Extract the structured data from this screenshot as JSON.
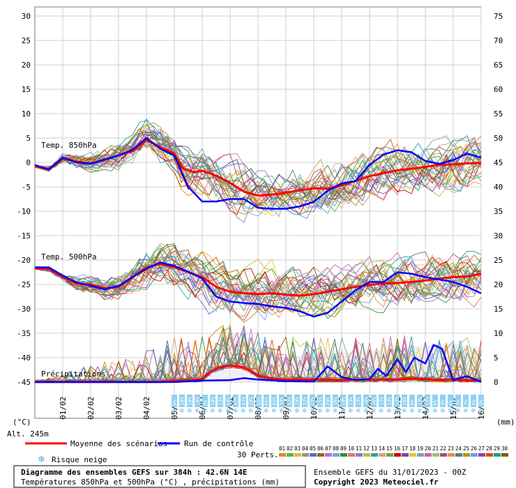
{
  "chart_data": {
    "type": "line",
    "axes": {
      "left_label": "(°C)",
      "right_label": "(mm)",
      "left_ticks": [
        30,
        25,
        20,
        15,
        10,
        5,
        0,
        -5,
        -10,
        -15,
        -20,
        -25,
        -30,
        -35,
        -40,
        -45
      ],
      "right_ticks": [
        75,
        70,
        65,
        60,
        55,
        50,
        45,
        40,
        35,
        30,
        25,
        20,
        15,
        10,
        5,
        0
      ],
      "left_range": [
        -45,
        30
      ],
      "right_range": [
        0,
        75
      ],
      "x_ticks": [
        "01/02",
        "02/02",
        "03/02",
        "04/02",
        "05/02",
        "06/02",
        "07/02",
        "08/02",
        "09/02",
        "10/02",
        "11/02",
        "12/02",
        "13/02",
        "14/02",
        "15/02",
        "16/02"
      ],
      "x_range_days": [
        0,
        16
      ],
      "grid": true
    },
    "panel_labels": {
      "t850": "Temp. 850hPa",
      "t500": "Temp. 500hPa",
      "precip": "Précipitations"
    },
    "altitude": "Alt. 245m",
    "series": [
      {
        "name": "Moyenne des scénarios",
        "color": "#ff0000",
        "t850": [
          [
            0,
            -0.8
          ],
          [
            0.5,
            -1.3
          ],
          [
            1,
            0.8
          ],
          [
            1.5,
            0.2
          ],
          [
            2,
            -0.2
          ],
          [
            2.5,
            0.5
          ],
          [
            3,
            1.5
          ],
          [
            3.5,
            2.3
          ],
          [
            4,
            4.6
          ],
          [
            4.5,
            3.1
          ],
          [
            5,
            1.8
          ],
          [
            5.3,
            -1.2
          ],
          [
            5.7,
            -2
          ],
          [
            6,
            -1.7
          ],
          [
            6.5,
            -2.7
          ],
          [
            7,
            -4.2
          ],
          [
            7.5,
            -6
          ],
          [
            8,
            -6.8
          ],
          [
            8.5,
            -6.6
          ],
          [
            9,
            -6.2
          ],
          [
            9.5,
            -5.7
          ],
          [
            10,
            -5.3
          ],
          [
            10.5,
            -5.4
          ],
          [
            11,
            -4.7
          ],
          [
            11.5,
            -3.8
          ],
          [
            12,
            -2.8
          ],
          [
            12.5,
            -2.2
          ],
          [
            13,
            -1.6
          ],
          [
            13.5,
            -1.3
          ],
          [
            14,
            -0.9
          ],
          [
            14.5,
            -0.5
          ],
          [
            15,
            -0.4
          ],
          [
            15.5,
            -0.2
          ],
          [
            16,
            -0.1
          ]
        ],
        "t500": [
          [
            0,
            -21.7
          ],
          [
            0.5,
            -21.8
          ],
          [
            1,
            -23.5
          ],
          [
            1.5,
            -24.8
          ],
          [
            2,
            -25
          ],
          [
            2.5,
            -25.8
          ],
          [
            3,
            -25.5
          ],
          [
            3.5,
            -23.5
          ],
          [
            4,
            -21.5
          ],
          [
            4.5,
            -20.8
          ],
          [
            5,
            -21.5
          ],
          [
            5.5,
            -22.5
          ],
          [
            6,
            -23.5
          ],
          [
            6.5,
            -25.5
          ],
          [
            7,
            -26.5
          ],
          [
            7.5,
            -26.8
          ],
          [
            8,
            -27
          ],
          [
            8.5,
            -26.8
          ],
          [
            9,
            -27.1
          ],
          [
            9.5,
            -27.3
          ],
          [
            10,
            -27
          ],
          [
            10.5,
            -26.5
          ],
          [
            11,
            -26
          ],
          [
            11.5,
            -25.5
          ],
          [
            12,
            -25.1
          ],
          [
            12.5,
            -24.8
          ],
          [
            13,
            -24.7
          ],
          [
            13.5,
            -24.5
          ],
          [
            14,
            -24.2
          ],
          [
            14.5,
            -23.8
          ],
          [
            15,
            -23.5
          ],
          [
            15.5,
            -23.4
          ],
          [
            16,
            -22.8
          ]
        ],
        "precip": [
          [
            0,
            0
          ],
          [
            4.5,
            0
          ],
          [
            5,
            0.3
          ],
          [
            5.5,
            0.3
          ],
          [
            6,
            0.6
          ],
          [
            6.3,
            2.1
          ],
          [
            6.6,
            3
          ],
          [
            7,
            3.4
          ],
          [
            7.5,
            3
          ],
          [
            8,
            1.3
          ],
          [
            8.5,
            0.7
          ],
          [
            9,
            0.5
          ],
          [
            10,
            0.5
          ],
          [
            11,
            0.4
          ],
          [
            12,
            0.5
          ],
          [
            13,
            0.5
          ],
          [
            13.5,
            0.7
          ],
          [
            14,
            0.6
          ],
          [
            14.5,
            0.4
          ],
          [
            15,
            0.5
          ],
          [
            15.5,
            0.3
          ],
          [
            16,
            0.3
          ]
        ]
      },
      {
        "name": "Run de contrôle",
        "color": "#0000ff",
        "t850": [
          [
            0,
            -0.5
          ],
          [
            0.5,
            -1.5
          ],
          [
            1,
            1
          ],
          [
            1.5,
            0
          ],
          [
            2,
            -0.3
          ],
          [
            2.5,
            0.6
          ],
          [
            3,
            1.4
          ],
          [
            3.5,
            2.6
          ],
          [
            4,
            5
          ],
          [
            4.5,
            2.8
          ],
          [
            5,
            1.4
          ],
          [
            5.5,
            -5
          ],
          [
            6,
            -8
          ],
          [
            6.5,
            -8
          ],
          [
            7,
            -7.5
          ],
          [
            7.5,
            -7.5
          ],
          [
            8,
            -9.3
          ],
          [
            8.5,
            -9.5
          ],
          [
            9,
            -9.5
          ],
          [
            9.5,
            -9
          ],
          [
            10,
            -8.1
          ],
          [
            10.5,
            -5.8
          ],
          [
            11,
            -4.3
          ],
          [
            11.5,
            -3.8
          ],
          [
            12,
            -0.5
          ],
          [
            12.5,
            1.6
          ],
          [
            13,
            2.5
          ],
          [
            13.5,
            2.1
          ],
          [
            14,
            0.3
          ],
          [
            14.5,
            -0.3
          ],
          [
            15,
            0.5
          ],
          [
            15.5,
            1.8
          ],
          [
            16,
            1
          ]
        ],
        "t500": [
          [
            0,
            -21.5
          ],
          [
            0.5,
            -21.5
          ],
          [
            1,
            -23.2
          ],
          [
            1.5,
            -24.6
          ],
          [
            2,
            -25.3
          ],
          [
            2.5,
            -26
          ],
          [
            3,
            -25.3
          ],
          [
            3.5,
            -23.5
          ],
          [
            4,
            -21.8
          ],
          [
            4.5,
            -20.5
          ],
          [
            5,
            -21.2
          ],
          [
            5.5,
            -22.4
          ],
          [
            6,
            -23.8
          ],
          [
            6.5,
            -27.5
          ],
          [
            7,
            -28.5
          ],
          [
            7.5,
            -28.8
          ],
          [
            8,
            -29
          ],
          [
            8.5,
            -29.5
          ],
          [
            9,
            -29.8
          ],
          [
            9.5,
            -30.5
          ],
          [
            10,
            -31.6
          ],
          [
            10.5,
            -30.8
          ],
          [
            11,
            -28.5
          ],
          [
            11.5,
            -26.2
          ],
          [
            12,
            -24.5
          ],
          [
            12.5,
            -24.5
          ],
          [
            13,
            -22.5
          ],
          [
            13.5,
            -22.8
          ],
          [
            14,
            -23.5
          ],
          [
            14.5,
            -24
          ],
          [
            15,
            -24.5
          ],
          [
            15.5,
            -25.5
          ],
          [
            16,
            -26.8
          ]
        ],
        "precip": [
          [
            0,
            0
          ],
          [
            5,
            0
          ],
          [
            6,
            0.3
          ],
          [
            7,
            0.4
          ],
          [
            7.5,
            0.8
          ],
          [
            8,
            0.5
          ],
          [
            9,
            0.2
          ],
          [
            10,
            0.1
          ],
          [
            10.5,
            3.2
          ],
          [
            11,
            1
          ],
          [
            11.5,
            0.4
          ],
          [
            12,
            0.6
          ],
          [
            12.3,
            2.7
          ],
          [
            12.6,
            1.2
          ],
          [
            13,
            4.7
          ],
          [
            13.3,
            2
          ],
          [
            13.6,
            5
          ],
          [
            14,
            3.8
          ],
          [
            14.3,
            7.6
          ],
          [
            14.6,
            6.8
          ],
          [
            15,
            0.4
          ],
          [
            15.5,
            1.2
          ],
          [
            16,
            0
          ]
        ]
      }
    ],
    "perturbation_count": 30,
    "precip_spread": [
      [
        0,
        0
      ],
      [
        4,
        0.2
      ],
      [
        5,
        4
      ],
      [
        6,
        4.5
      ],
      [
        6.5,
        7
      ],
      [
        7,
        10
      ],
      [
        7.5,
        9
      ],
      [
        8,
        6
      ],
      [
        9,
        5
      ],
      [
        10,
        6
      ],
      [
        11,
        6
      ],
      [
        12,
        6.5
      ],
      [
        13,
        7
      ],
      [
        14,
        7.5
      ],
      [
        15,
        8
      ],
      [
        16,
        7
      ]
    ],
    "snow_risk": [
      "6%",
      "10%",
      "10%",
      "10%",
      "6%",
      "10%",
      "13%",
      "16%",
      "42%",
      "42%",
      "39%",
      "52%",
      "45%",
      "45%",
      "39%",
      "32%",
      "29%",
      "32%",
      "23%",
      "23%",
      "29%",
      "16%",
      "10%",
      "13%",
      "13%",
      "10%",
      "16%",
      "13%",
      "13%",
      "13%",
      "10%",
      "6%",
      "13%",
      "13%",
      "6%",
      "3%",
      "6%",
      "3%",
      "3%",
      "3%",
      "3%"
    ],
    "snow_risk_start_day": 5
  },
  "legend": {
    "mean_label": "Moyenne des scénarios",
    "control_label": "Run de contrôle",
    "snow_label": "Risque neige",
    "perturbations_label": "30 Perts.",
    "member_ids": [
      "01",
      "02",
      "03",
      "04",
      "05",
      "06",
      "07",
      "08",
      "09",
      "10",
      "11",
      "12",
      "13",
      "14",
      "15",
      "16",
      "17",
      "18",
      "19",
      "20",
      "21",
      "22",
      "23",
      "24",
      "25",
      "26",
      "27",
      "28",
      "29",
      "30"
    ],
    "member_colors": [
      "#e6891e",
      "#4eb844",
      "#e6b83b",
      "#949494",
      "#4a6fc9",
      "#9f6020",
      "#c46bd5",
      "#6fa8dc",
      "#3a8a3a",
      "#e57373",
      "#8e7cc3",
      "#b5c248",
      "#2ea3a3",
      "#d4a373",
      "#6aa84f",
      "#cc0000",
      "#674ea7",
      "#f1c232",
      "#76a5af",
      "#d55ea6",
      "#93c47d",
      "#a64d79",
      "#e69138",
      "#45818e",
      "#bf9000",
      "#6d9eeb",
      "#8e44ad",
      "#d35400",
      "#16a085",
      "#7f6000"
    ]
  },
  "footer": {
    "title": "Diagramme des ensembles GEFS sur 384h : 42.6N 14E",
    "subtitle": "Températures 850hPa et 500hPa (°C) , précipitations (mm)",
    "run": "Ensemble GEFS du 31/01/2023 - 00Z",
    "copyright": "Copyright 2023 Meteociel.fr"
  }
}
